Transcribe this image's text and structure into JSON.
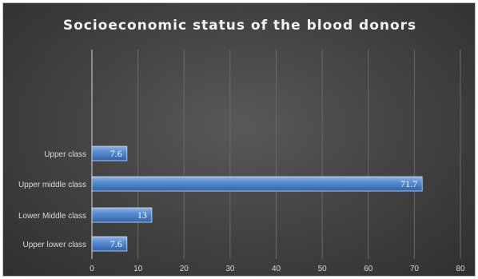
{
  "chart_data": {
    "type": "bar",
    "orientation": "horizontal",
    "title": "Socioeconomic status of the blood donors",
    "categories": [
      "Upper lower class",
      "Lower Middle class",
      "Upper middle class",
      "Upper class"
    ],
    "values": [
      7.6,
      13,
      71.7,
      7.6
    ],
    "data_labels": [
      "7.6",
      "13",
      "71.7",
      "7.6"
    ],
    "xlim": [
      0,
      80
    ],
    "x_ticks": [
      0,
      10,
      20,
      30,
      40,
      50,
      60,
      70,
      80
    ],
    "x_tick_labels": [
      "0",
      "10",
      "20",
      "30",
      "40",
      "50",
      "60",
      "70",
      "80"
    ],
    "grid": true,
    "legend": "none",
    "colors": {
      "bar": "#4f81bd",
      "bar_light": "#6f9cdc",
      "bar_dark": "#3462a5",
      "background": "#404040",
      "gridline": "#6a6a6a",
      "text": "#d9d9d9"
    }
  }
}
